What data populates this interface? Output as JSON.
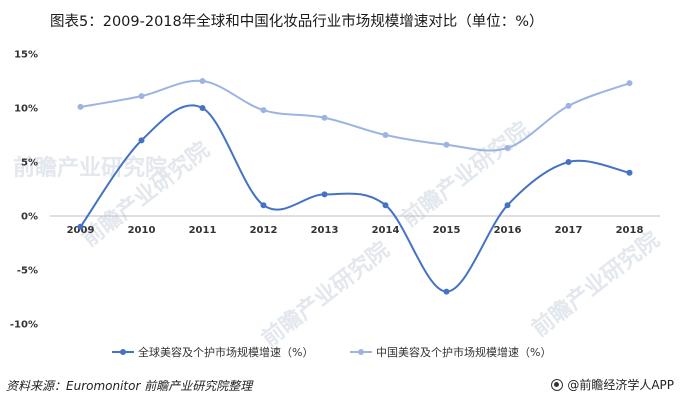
{
  "title": "图表5：2009-2018年全球和中国化妆品行业市场规模增速对比（单位：%）",
  "footer": {
    "source": "资料来源：Euromonitor 前瞻产业研究院整理",
    "brand": "@前瞻经济学人APP"
  },
  "watermark_text": "前瞻产业研究院",
  "chart_data": {
    "type": "line",
    "x": [
      "2009",
      "2010",
      "2011",
      "2012",
      "2013",
      "2014",
      "2015",
      "2016",
      "2017",
      "2018"
    ],
    "series": [
      {
        "name": "全球美容及个护市场规模增速（%）",
        "values": [
          -1,
          7,
          10,
          1,
          2,
          1,
          -7,
          1,
          5,
          4
        ],
        "color": "#4472c4"
      },
      {
        "name": "中国美容及个护市场规模增速（%）",
        "values": [
          10.1,
          11.1,
          12.5,
          9.8,
          9.1,
          7.5,
          6.6,
          6.3,
          10.2,
          12.3
        ],
        "color": "#9db4e3"
      }
    ],
    "ylim": [
      -10,
      15
    ],
    "yticks": [
      -10,
      -5,
      0,
      5,
      10,
      15
    ],
    "ytick_labels": [
      "-10%",
      "-5%",
      "0%",
      "5%",
      "10%",
      "15%"
    ],
    "legend_position": "bottom",
    "grid": false,
    "smooth": true
  }
}
